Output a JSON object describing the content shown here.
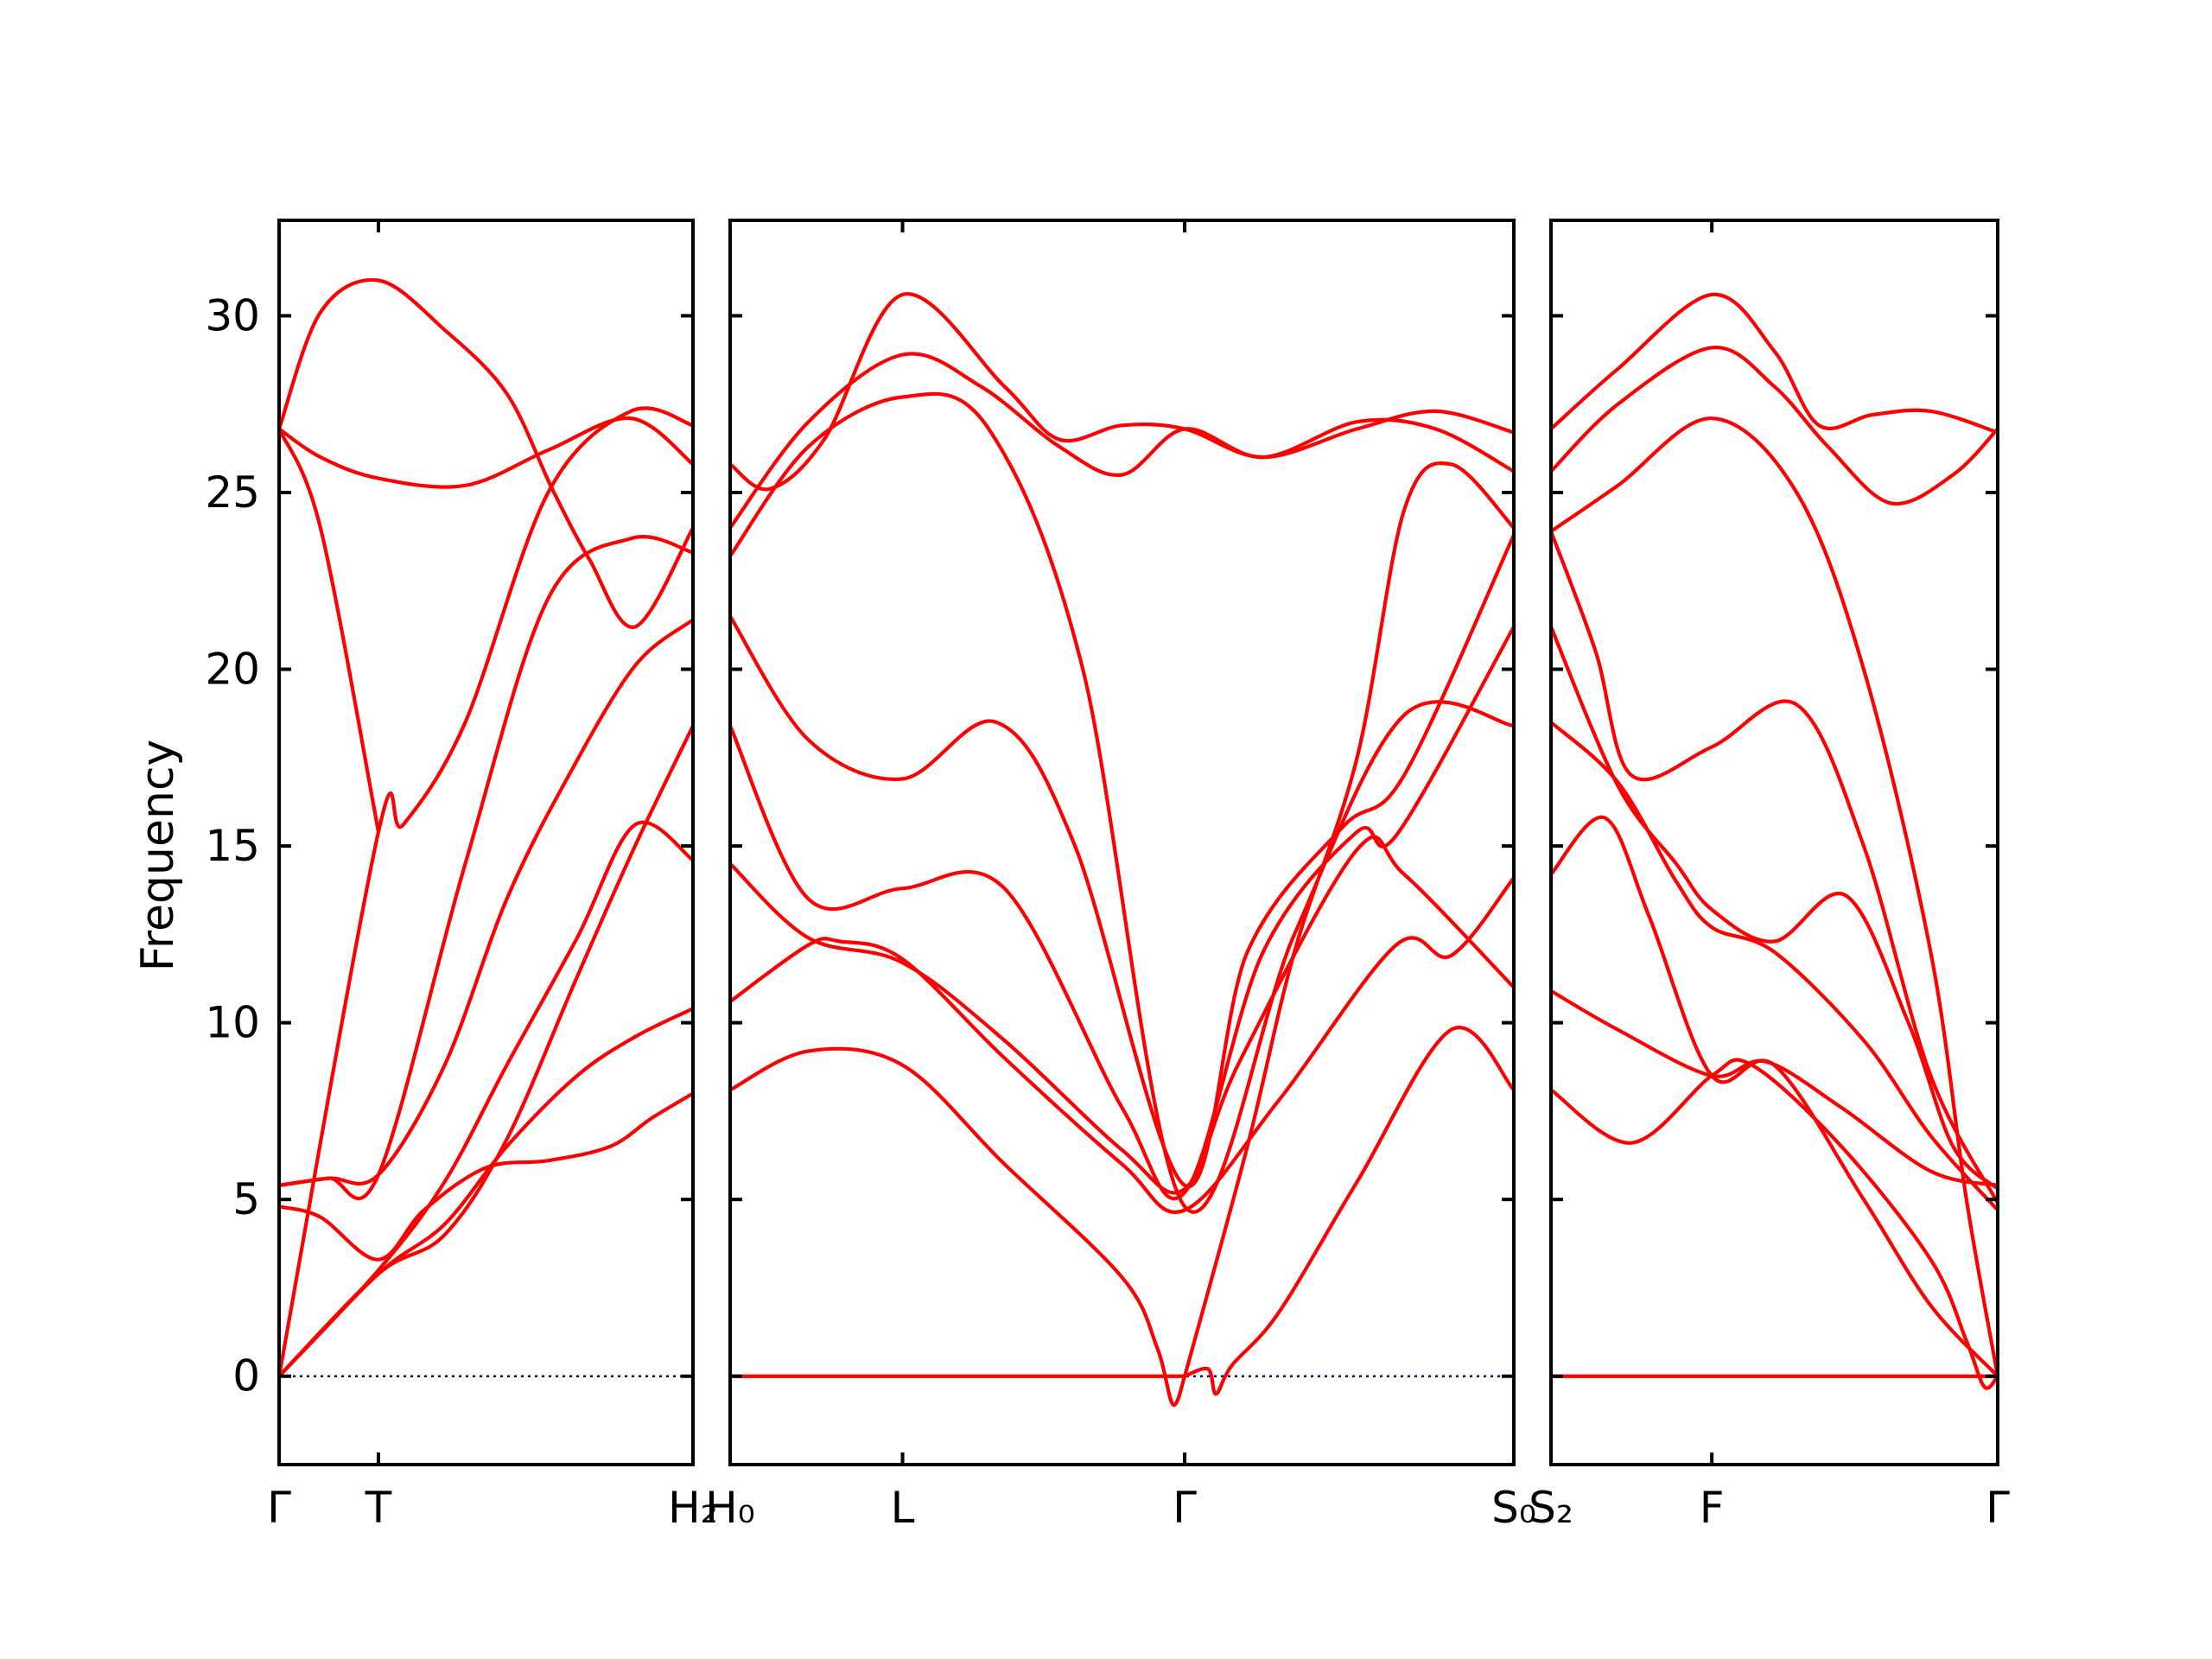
{
  "chart_data": {
    "type": "line",
    "title": "",
    "ylabel": "Frequency",
    "xlabel": "",
    "ylim": [
      -2.5,
      32.7
    ],
    "yticks": [
      0,
      5,
      10,
      15,
      20,
      25,
      30
    ],
    "ytick_labels": [
      "0",
      "5",
      "10",
      "15",
      "20",
      "25",
      "30"
    ],
    "grid": false,
    "legend": "none",
    "zero_line": true,
    "colors": {
      "bands": "#ff0000",
      "zero_line": "#00008b",
      "axes": "#000000"
    },
    "panels": [
      {
        "xlim": [
          0,
          1
        ],
        "ticks": [
          0,
          0.24,
          1
        ],
        "tick_labels": [
          "Γ",
          "T",
          "H₂"
        ],
        "bands": [
          [
            [
              0,
              0
            ],
            [
              0.24,
              2.9
            ],
            [
              0.4,
              4.3
            ],
            [
              0.55,
              6.5
            ],
            [
              0.72,
              8.5
            ],
            [
              0.86,
              9.6
            ],
            [
              1,
              10.4
            ]
          ],
          [
            [
              0,
              0
            ],
            [
              0.24,
              3.0
            ],
            [
              0.4,
              5.5
            ],
            [
              0.55,
              8.8
            ],
            [
              0.72,
              12.4
            ],
            [
              0.86,
              15.6
            ],
            [
              1,
              14.6
            ]
          ],
          [
            [
              0,
              0
            ],
            [
              0.24,
              15.4
            ],
            [
              0.3,
              15.6
            ],
            [
              0.45,
              18.5
            ],
            [
              0.65,
              25.0
            ],
            [
              0.85,
              27.3
            ],
            [
              1,
              26.9
            ]
          ],
          [
            [
              0,
              26.8
            ],
            [
              0.1,
              24.0
            ],
            [
              0.24,
              15.4
            ]
          ],
          [
            [
              0,
              26.8
            ],
            [
              0.1,
              30.1
            ],
            [
              0.24,
              31.0
            ],
            [
              0.4,
              29.6
            ],
            [
              0.55,
              27.8
            ],
            [
              0.66,
              25.1
            ],
            [
              0.75,
              23.1
            ],
            [
              0.86,
              21.2
            ],
            [
              1,
              24.0
            ]
          ],
          [
            [
              0,
              4.8
            ],
            [
              0.1,
              4.5
            ],
            [
              0.24,
              3.3
            ],
            [
              0.35,
              4.7
            ],
            [
              0.5,
              5.9
            ],
            [
              0.65,
              6.1
            ],
            [
              0.8,
              6.5
            ],
            [
              0.9,
              7.3
            ],
            [
              1,
              8.0
            ]
          ],
          [
            [
              0,
              5.4
            ],
            [
              0.12,
              5.6
            ],
            [
              0.24,
              5.7
            ],
            [
              0.4,
              8.8
            ],
            [
              0.55,
              13.5
            ],
            [
              0.7,
              17.0
            ],
            [
              0.86,
              20.1
            ],
            [
              1,
              21.4
            ]
          ],
          [
            [
              0,
              5.4
            ],
            [
              0.12,
              5.6
            ],
            [
              0.24,
              5.7
            ],
            [
              0.45,
              14.5
            ],
            [
              0.65,
              22.0
            ],
            [
              0.85,
              23.7
            ],
            [
              1,
              23.3
            ]
          ],
          [
            [
              0,
              0
            ],
            [
              0.24,
              2.9
            ],
            [
              0.4,
              4.0
            ],
            [
              0.55,
              6.7
            ],
            [
              0.72,
              11.3
            ],
            [
              0.86,
              15.0
            ],
            [
              1,
              18.4
            ]
          ],
          [
            [
              0,
              26.8
            ],
            [
              0.1,
              26.0
            ],
            [
              0.24,
              25.4
            ],
            [
              0.45,
              25.2
            ],
            [
              0.65,
              26.2
            ],
            [
              0.85,
              27.1
            ],
            [
              1,
              25.8
            ]
          ]
        ]
      },
      {
        "xlim": [
          0,
          1
        ],
        "ticks": [
          0,
          0.22,
          0.58,
          1
        ],
        "tick_labels": [
          "H₀",
          "L",
          "Γ",
          "S₀"
        ],
        "bands": [
          [
            [
              0,
              8.1
            ],
            [
              0.1,
              9.2
            ],
            [
              0.22,
              8.8
            ],
            [
              0.35,
              6.0
            ],
            [
              0.5,
              2.8
            ],
            [
              0.545,
              0.8
            ],
            [
              0.565,
              -0.8
            ],
            [
              0.58,
              0
            ]
          ],
          [
            [
              0,
              10.6
            ],
            [
              0.1,
              12.2
            ],
            [
              0.14,
              12.3
            ],
            [
              0.22,
              11.8
            ],
            [
              0.35,
              9.0
            ],
            [
              0.5,
              6.0
            ],
            [
              0.58,
              4.7
            ],
            [
              0.7,
              7.8
            ],
            [
              0.85,
              12.2
            ],
            [
              0.92,
              11.9
            ],
            [
              1,
              14.1
            ]
          ],
          [
            [
              0,
              14.5
            ],
            [
              0.1,
              12.4
            ],
            [
              0.22,
              11.7
            ],
            [
              0.35,
              9.5
            ],
            [
              0.5,
              6.4
            ],
            [
              0.58,
              5.3
            ],
            [
              0.65,
              8.9
            ],
            [
              0.8,
              14.9
            ],
            [
              0.86,
              14.2
            ],
            [
              1,
              11.0
            ]
          ],
          [
            [
              0,
              18.4
            ],
            [
              0.1,
              13.5
            ],
            [
              0.22,
              13.8
            ],
            [
              0.35,
              13.8
            ],
            [
              0.5,
              7.6
            ],
            [
              0.58,
              5.2
            ],
            [
              0.68,
              12.0
            ],
            [
              0.8,
              15.4
            ],
            [
              0.85,
              15.3
            ],
            [
              1,
              21.2
            ]
          ],
          [
            [
              0,
              21.5
            ],
            [
              0.1,
              18.0
            ],
            [
              0.22,
              16.9
            ],
            [
              0.34,
              18.5
            ],
            [
              0.44,
              15.0
            ],
            [
              0.58,
              5.4
            ],
            [
              0.66,
              12.0
            ],
            [
              0.78,
              15.5
            ],
            [
              0.86,
              17.0
            ],
            [
              1,
              23.8
            ]
          ],
          [
            [
              0,
              23.2
            ],
            [
              0.1,
              26.3
            ],
            [
              0.22,
              27.7
            ],
            [
              0.33,
              26.8
            ],
            [
              0.45,
              20.0
            ],
            [
              0.58,
              4.8
            ],
            [
              0.72,
              12.5
            ],
            [
              0.86,
              18.7
            ],
            [
              1,
              18.4
            ]
          ],
          [
            [
              0,
              24.0
            ],
            [
              0.1,
              27.0
            ],
            [
              0.22,
              28.9
            ],
            [
              0.32,
              28.0
            ],
            [
              0.42,
              26.3
            ],
            [
              0.5,
              25.5
            ],
            [
              0.58,
              26.8
            ],
            [
              0.68,
              26.0
            ],
            [
              0.8,
              27.0
            ],
            [
              0.9,
              26.8
            ],
            [
              1,
              25.6
            ]
          ],
          [
            [
              0,
              25.8
            ],
            [
              0.05,
              25.1
            ],
            [
              0.12,
              26.5
            ],
            [
              0.22,
              30.6
            ],
            [
              0.35,
              28.0
            ],
            [
              0.42,
              26.5
            ],
            [
              0.5,
              26.9
            ],
            [
              0.58,
              26.8
            ],
            [
              0.68,
              26.0
            ],
            [
              0.8,
              26.8
            ],
            [
              0.9,
              27.3
            ],
            [
              1,
              26.7
            ]
          ],
          [
            [
              0,
              0
            ],
            [
              0.58,
              0
            ]
          ],
          [
            [
              0.58,
              0
            ],
            [
              0.61,
              0.2
            ],
            [
              0.62,
              -0.5
            ],
            [
              0.64,
              0.3
            ],
            [
              0.7,
              1.8
            ],
            [
              0.8,
              5.5
            ],
            [
              0.92,
              9.8
            ],
            [
              1,
              8.1
            ]
          ],
          [
            [
              0.58,
              0
            ],
            [
              0.66,
              6.5
            ],
            [
              0.72,
              12.0
            ],
            [
              0.8,
              17.5
            ],
            [
              0.86,
              24.5
            ],
            [
              0.92,
              25.8
            ],
            [
              1,
              24.0
            ]
          ]
        ]
      },
      {
        "xlim": [
          0,
          1
        ],
        "ticks": [
          0,
          0.36,
          1
        ],
        "tick_labels": [
          "S₂",
          "F",
          "Γ"
        ],
        "bands": [
          [
            [
              0,
              8.1
            ],
            [
              0.18,
              6.6
            ],
            [
              0.36,
              8.5
            ],
            [
              0.45,
              8.8
            ],
            [
              0.65,
              6.5
            ],
            [
              0.85,
              3.3
            ],
            [
              0.93,
              1.0
            ],
            [
              0.97,
              -0.3
            ],
            [
              1,
              0
            ]
          ],
          [
            [
              0,
              10.9
            ],
            [
              0.15,
              9.8
            ],
            [
              0.36,
              8.5
            ],
            [
              0.48,
              8.9
            ],
            [
              0.65,
              7.6
            ],
            [
              0.85,
              5.8
            ],
            [
              1,
              5.4
            ]
          ],
          [
            [
              0,
              14.2
            ],
            [
              0.12,
              15.8
            ],
            [
              0.22,
              13.0
            ],
            [
              0.36,
              8.5
            ],
            [
              0.5,
              8.8
            ],
            [
              0.7,
              5.0
            ],
            [
              0.85,
              2.0
            ],
            [
              1,
              0
            ]
          ],
          [
            [
              0,
              18.5
            ],
            [
              0.15,
              16.8
            ],
            [
              0.28,
              14.0
            ],
            [
              0.36,
              12.7
            ],
            [
              0.5,
              12.0
            ],
            [
              0.7,
              9.5
            ],
            [
              0.85,
              6.8
            ],
            [
              1,
              4.7
            ]
          ],
          [
            [
              0,
              21.2
            ],
            [
              0.15,
              16.7
            ],
            [
              0.28,
              14.5
            ],
            [
              0.36,
              13.2
            ],
            [
              0.5,
              12.3
            ],
            [
              0.66,
              13.6
            ],
            [
              0.8,
              10.0
            ],
            [
              0.9,
              6.5
            ],
            [
              1,
              5.3
            ]
          ],
          [
            [
              0,
              23.9
            ],
            [
              0.1,
              20.5
            ],
            [
              0.18,
              17.0
            ],
            [
              0.36,
              17.8
            ],
            [
              0.55,
              19.0
            ],
            [
              0.7,
              15.0
            ],
            [
              0.85,
              8.5
            ],
            [
              1,
              4.9
            ]
          ],
          [
            [
              0,
              25.6
            ],
            [
              0.15,
              27.5
            ],
            [
              0.36,
              29.1
            ],
            [
              0.5,
              28.0
            ],
            [
              0.62,
              26.3
            ],
            [
              0.76,
              24.7
            ],
            [
              0.9,
              25.5
            ],
            [
              1,
              26.8
            ]
          ],
          [
            [
              0,
              26.8
            ],
            [
              0.15,
              28.5
            ],
            [
              0.36,
              30.6
            ],
            [
              0.5,
              29.0
            ],
            [
              0.6,
              26.9
            ],
            [
              0.72,
              27.2
            ],
            [
              0.85,
              27.3
            ],
            [
              1,
              26.7
            ]
          ],
          [
            [
              0,
              23.9
            ],
            [
              0.15,
              25.2
            ],
            [
              0.36,
              27.1
            ],
            [
              0.55,
              25.0
            ],
            [
              0.7,
              20.0
            ],
            [
              0.85,
              12.0
            ],
            [
              0.93,
              5.0
            ],
            [
              1,
              0
            ]
          ],
          [
            [
              0,
              0
            ],
            [
              1,
              0
            ]
          ]
        ]
      }
    ]
  }
}
